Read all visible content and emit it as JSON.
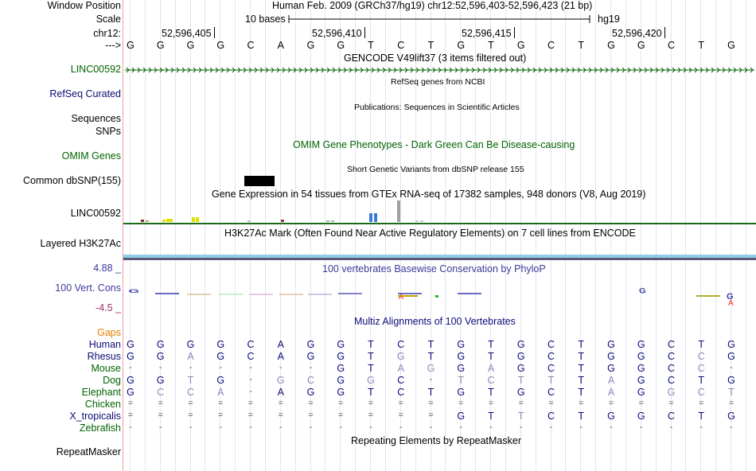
{
  "header": {
    "window_position_label": "Window Position",
    "scale_label": "Scale",
    "chrom_label": "chr12:",
    "strand_label": "--->",
    "assembly_text": "Human Feb. 2009 (GRCh37/hg19)   chr12:52,596,403-52,596,423 (21 bp)",
    "scale_text": "10 bases",
    "db_text": "hg19",
    "positions": [
      "52,596,405",
      "52,596,410",
      "52,596,415",
      "52,596,420"
    ],
    "sequence": [
      "G",
      "G",
      "G",
      "G",
      "C",
      "A",
      "G",
      "G",
      "T",
      "C",
      "T",
      "G",
      "T",
      "G",
      "C",
      "T",
      "G",
      "G",
      "C",
      "T",
      "G"
    ]
  },
  "tracks": {
    "gencode": {
      "title": "GENCODE V49lift37 (3 items filtered out)",
      "label": "LINC00592",
      "color": "#006400"
    },
    "refseq": {
      "title": "RefSeq genes from NCBI",
      "label": "RefSeq Curated",
      "color": "#0c0c78"
    },
    "publications": {
      "title": "Publications: Sequences in Scientific Articles",
      "label": "Sequences"
    },
    "snps_label": "SNPs",
    "omim": {
      "title": "OMIM Gene Phenotypes - Dark Green Can Be Disease-causing",
      "label": "OMIM Genes",
      "color": "#006400"
    },
    "dbsnp": {
      "title": "Short Genetic Variants from dbSNP release 155",
      "label": "Common dbSNP(155)"
    },
    "gtex": {
      "title": "Gene Expression in 54 tissues from GTEx RNA-seq of 17382 samples, 948 donors (V8, Aug 2019)",
      "label": "LINC00592"
    },
    "h3k27ac": {
      "title": "H3K27Ac Mark (Often Found Near Active Regulatory Elements) on 7 cell lines from ENCODE",
      "label": "Layered H3K27Ac"
    },
    "phylop": {
      "title": "100 vertebrates Basewise Conservation by PhyloP",
      "label": "100 Vert. Cons",
      "ymax": "4.88 _",
      "ymin": "-4.5 _",
      "color": "#3a3a9a"
    },
    "gaps_label": "Gaps",
    "multiz": {
      "title": "Multiz Alignments of 100 Vertebrates",
      "color": "#0c0c78"
    },
    "repeatmasker": {
      "title": "Repeating Elements by RepeatMasker",
      "label": "RepeatMasker"
    }
  },
  "alignment": {
    "species": [
      {
        "name": "Human",
        "bases": [
          "G",
          "G",
          "G",
          "G",
          "C",
          "A",
          "G",
          "G",
          "T",
          "C",
          "T",
          "G",
          "T",
          "G",
          "C",
          "T",
          "G",
          "G",
          "C",
          "T",
          "G"
        ]
      },
      {
        "name": "Rhesus",
        "bases": [
          "G",
          "G",
          "A",
          "G",
          "C",
          "A",
          "G",
          "G",
          "T",
          "G",
          "T",
          "G",
          "T",
          "G",
          "C",
          "T",
          "G",
          "G",
          "C",
          "C",
          "G"
        ]
      },
      {
        "name": "Mouse",
        "bases": [
          "-",
          "-",
          "-",
          "-",
          "-",
          "-",
          "-",
          "G",
          "T",
          "A",
          "G",
          "G",
          "A",
          "G",
          "C",
          "T",
          "G",
          "G",
          "C",
          "C",
          "-"
        ]
      },
      {
        "name": "Dog",
        "bases": [
          "G",
          "G",
          "T",
          "G",
          "-",
          "G",
          "C",
          "G",
          "G",
          "C",
          "-",
          "T",
          "C",
          "T",
          "T",
          "T",
          "A",
          "G",
          "C",
          "T",
          "G"
        ]
      },
      {
        "name": "Elephant",
        "bases": [
          "G",
          "C",
          "C",
          "A",
          "-",
          "A",
          "G",
          "G",
          "T",
          "C",
          "T",
          "G",
          "T",
          "G",
          "C",
          "T",
          "A",
          "G",
          "G",
          "C",
          "T"
        ]
      },
      {
        "name": "Chicken",
        "bases": [
          "=",
          "=",
          "=",
          "=",
          "=",
          "=",
          "=",
          "=",
          "=",
          "=",
          "=",
          "=",
          "=",
          "=",
          "=",
          "=",
          "=",
          "=",
          "=",
          "=",
          "="
        ]
      },
      {
        "name": "X_tropicalis",
        "bases": [
          "=",
          "=",
          "=",
          "=",
          "=",
          "=",
          "=",
          "=",
          "=",
          "=",
          "=",
          "G",
          "T",
          "T",
          "C",
          "T",
          "G",
          "G",
          "C",
          "T",
          "G"
        ]
      },
      {
        "name": "Zebrafish",
        "bases": [
          "-",
          "-",
          "-",
          "-",
          "-",
          "-",
          "-",
          "-",
          "-",
          "-",
          "-",
          "-",
          "-",
          "-",
          "-",
          "-",
          "-",
          "-",
          "-",
          "-",
          "-"
        ]
      }
    ],
    "match_color": "#0c0c78",
    "mismatch_color": "#8a8ab8"
  },
  "colors": {
    "green_label": "#006400",
    "blue_label": "#0c0c78",
    "gaps_label": "#e08000",
    "divider": "#e8a0a0"
  }
}
